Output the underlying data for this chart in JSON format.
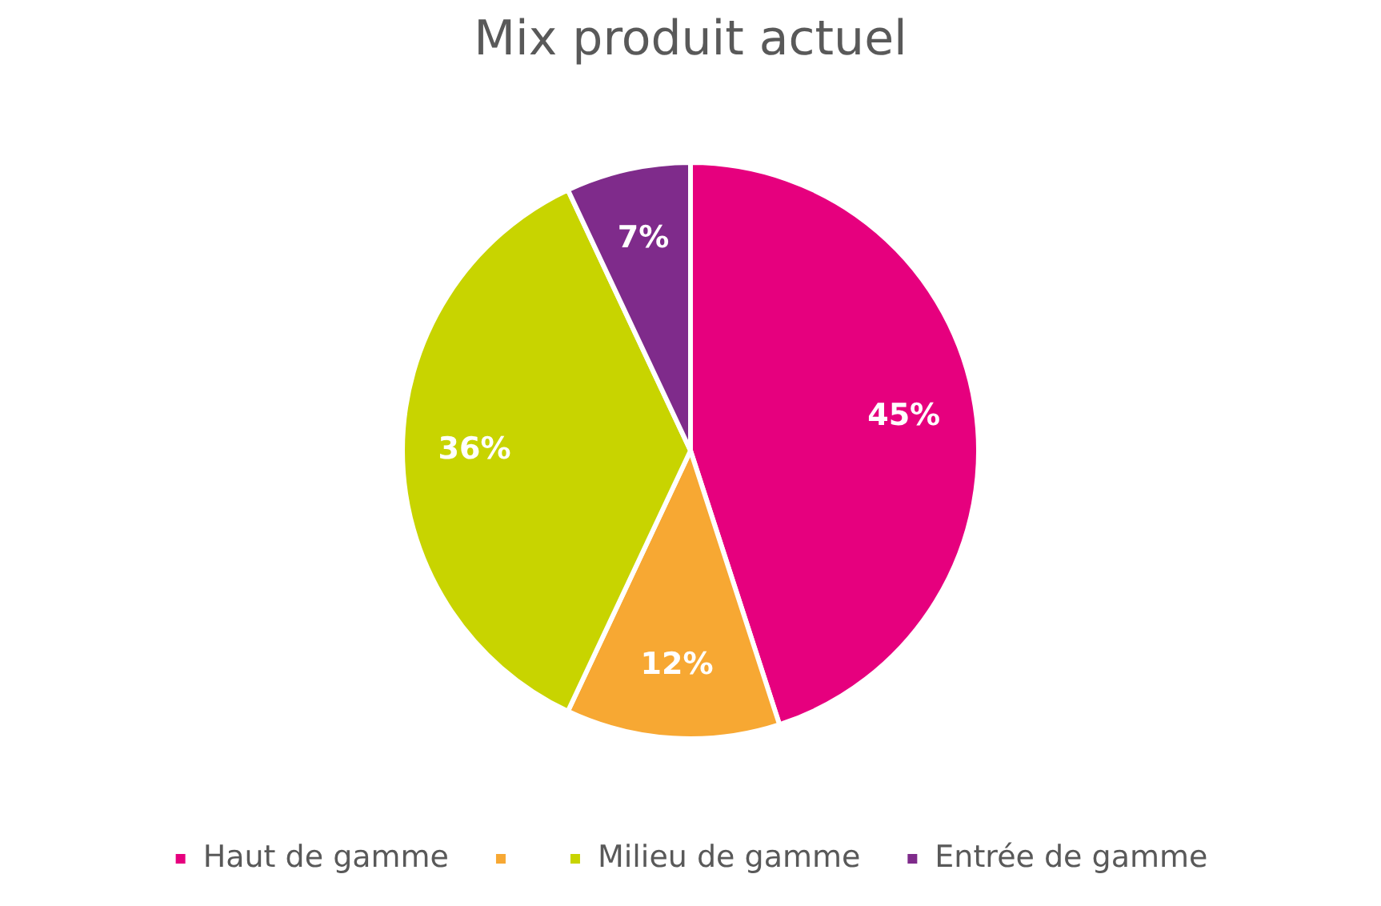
{
  "chart_data": {
    "type": "pie",
    "title": "Mix produit actuel",
    "categories": [
      "Haut de gamme",
      null,
      "Milieu de gamme",
      "Entrée de gamme"
    ],
    "values": [
      45,
      12,
      36,
      7
    ],
    "colors": [
      "#e6007e",
      "#f7a833",
      "#c8d400",
      "#7f2b8b"
    ],
    "value_labels": [
      "45%",
      "12%",
      "36%",
      "7%"
    ],
    "legend": "bottom"
  }
}
